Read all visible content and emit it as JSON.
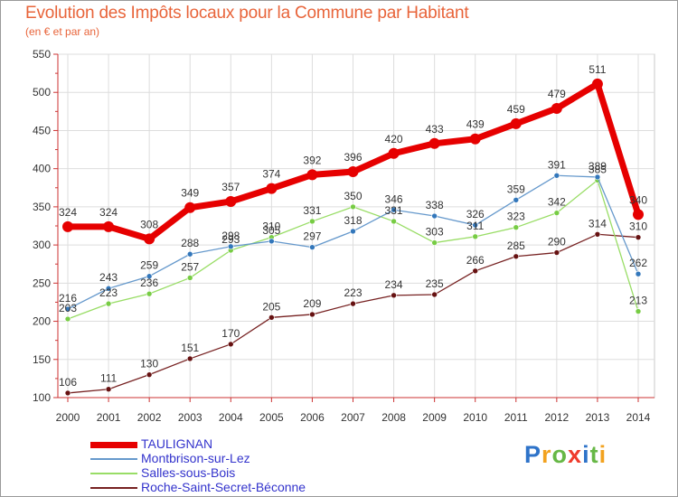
{
  "header": {
    "title": "Evolution des Impôts locaux pour la Commune par Habitant",
    "subtitle": "(en € et par an)"
  },
  "logo": {
    "text": "Proxiti",
    "letters": [
      {
        "ch": "P",
        "color": "#2e73c9"
      },
      {
        "ch": "r",
        "color": "#f2a21f"
      },
      {
        "ch": "o",
        "color": "#67b846"
      },
      {
        "ch": "x",
        "color": "#ef3b2c"
      },
      {
        "ch": "i",
        "color": "#2e73c9"
      },
      {
        "ch": "t",
        "color": "#67b846"
      },
      {
        "ch": "i",
        "color": "#f2a21f"
      }
    ]
  },
  "chart_data": {
    "type": "line",
    "title": "Evolution des Impôts locaux pour la Commune par Habitant",
    "subtitle": "(en € et par an)",
    "x": [
      "2000",
      "2001",
      "2002",
      "2003",
      "2004",
      "2005",
      "2006",
      "2007",
      "2008",
      "2009",
      "2010",
      "2011",
      "2012",
      "2013",
      "2014"
    ],
    "ylim": [
      100,
      550
    ],
    "yticks": [
      100,
      150,
      200,
      250,
      300,
      350,
      400,
      450,
      500,
      550
    ],
    "grid": true,
    "legend_position": "bottom-left",
    "series": [
      {
        "name": "TAULIGNAN",
        "color": "#e60000",
        "marker": "#e60000",
        "width": 7,
        "radius": 6,
        "values": [
          324,
          324,
          308,
          349,
          357,
          374,
          392,
          396,
          420,
          433,
          439,
          459,
          479,
          511,
          340
        ]
      },
      {
        "name": "Montbrison-sur-Lez",
        "color": "#6699cc",
        "marker": "#3377bb",
        "width": 1.3,
        "radius": 3,
        "values": [
          216,
          243,
          259,
          288,
          298,
          305,
          297,
          318,
          346,
          338,
          326,
          359,
          391,
          389,
          262
        ]
      },
      {
        "name": "Salles-sous-Bois",
        "color": "#99dd66",
        "marker": "#77cc44",
        "width": 1.3,
        "radius": 3,
        "values": [
          203,
          223,
          236,
          257,
          293,
          310,
          331,
          350,
          331,
          303,
          311,
          323,
          342,
          385,
          213
        ]
      },
      {
        "name": "Roche-Saint-Secret-Béconne",
        "color": "#772222",
        "marker": "#661111",
        "width": 1.3,
        "radius": 3,
        "values": [
          106,
          111,
          130,
          151,
          170,
          205,
          209,
          223,
          234,
          235,
          266,
          285,
          290,
          314,
          310
        ]
      }
    ]
  }
}
